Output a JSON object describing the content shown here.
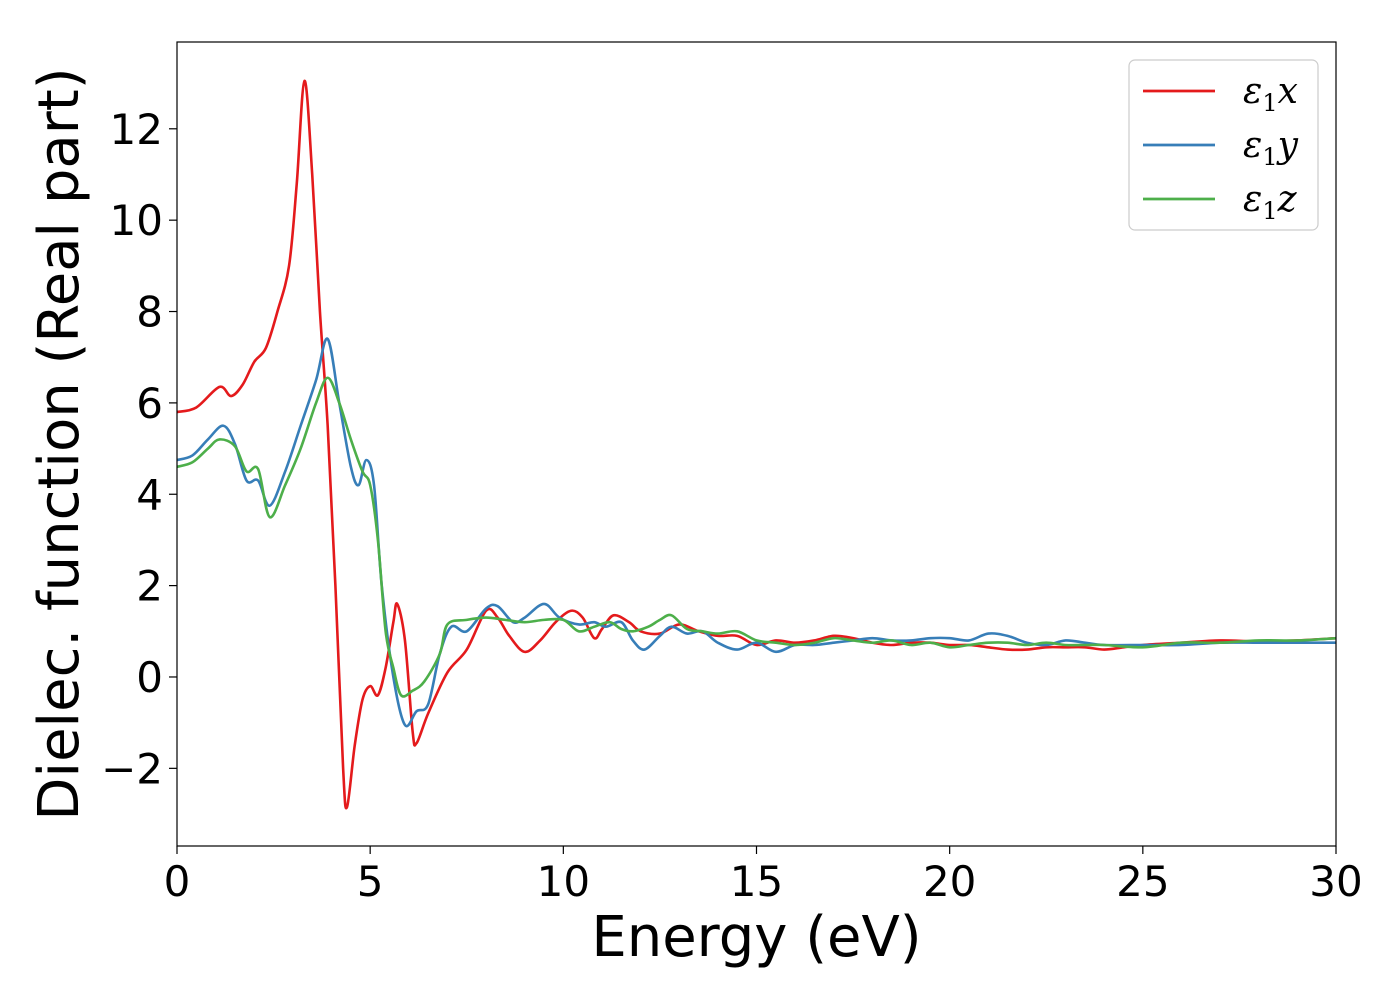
{
  "chart_data": {
    "type": "line",
    "title": "",
    "xlabel": "Energy (eV)",
    "ylabel": "Dielec. function (Real part)",
    "xlim": [
      0,
      30
    ],
    "ylim": [
      -3.7,
      13.9
    ],
    "xticks": [
      0,
      5,
      10,
      15,
      20,
      25,
      30
    ],
    "xtick_labels": [
      "0",
      "5",
      "10",
      "15",
      "20",
      "25",
      "30"
    ],
    "yticks": [
      -2,
      0,
      2,
      4,
      6,
      8,
      10,
      12
    ],
    "ytick_labels": [
      "−2",
      "0",
      "2",
      "4",
      "6",
      "8",
      "10",
      "12"
    ],
    "grid": false,
    "legend_position": "top-right",
    "series": [
      {
        "name": "ε₁x",
        "legend_main": "ε",
        "legend_sub": "1",
        "legend_tail": "x",
        "color": "#e41a1c",
        "points": [
          [
            0,
            5.8
          ],
          [
            0.5,
            5.9
          ],
          [
            1.1,
            6.35
          ],
          [
            1.4,
            6.15
          ],
          [
            1.7,
            6.4
          ],
          [
            2.0,
            6.9
          ],
          [
            2.3,
            7.2
          ],
          [
            2.6,
            8.0
          ],
          [
            2.9,
            9.0
          ],
          [
            3.1,
            10.8
          ],
          [
            3.3,
            13.05
          ],
          [
            3.5,
            11.0
          ],
          [
            3.7,
            8.0
          ],
          [
            3.9,
            5.5
          ],
          [
            4.1,
            2.0
          ],
          [
            4.3,
            -2.0
          ],
          [
            4.4,
            -2.85
          ],
          [
            4.6,
            -1.5
          ],
          [
            4.8,
            -0.5
          ],
          [
            5.0,
            -0.2
          ],
          [
            5.2,
            -0.4
          ],
          [
            5.4,
            0.2
          ],
          [
            5.6,
            1.2
          ],
          [
            5.7,
            1.6
          ],
          [
            5.9,
            0.8
          ],
          [
            6.1,
            -1.2
          ],
          [
            6.2,
            -1.45
          ],
          [
            6.5,
            -0.8
          ],
          [
            7.0,
            0.1
          ],
          [
            7.5,
            0.6
          ],
          [
            8.0,
            1.45
          ],
          [
            8.3,
            1.3
          ],
          [
            8.6,
            0.9
          ],
          [
            9.0,
            0.55
          ],
          [
            9.4,
            0.8
          ],
          [
            9.8,
            1.2
          ],
          [
            10.2,
            1.45
          ],
          [
            10.5,
            1.3
          ],
          [
            10.8,
            0.85
          ],
          [
            11.0,
            1.05
          ],
          [
            11.3,
            1.35
          ],
          [
            11.7,
            1.2
          ],
          [
            12.0,
            1.0
          ],
          [
            12.5,
            0.95
          ],
          [
            13.0,
            1.15
          ],
          [
            13.5,
            1.0
          ],
          [
            14.0,
            0.9
          ],
          [
            14.5,
            0.9
          ],
          [
            15.0,
            0.7
          ],
          [
            15.5,
            0.8
          ],
          [
            16.0,
            0.75
          ],
          [
            16.5,
            0.8
          ],
          [
            17.0,
            0.9
          ],
          [
            17.5,
            0.85
          ],
          [
            18.0,
            0.75
          ],
          [
            18.5,
            0.7
          ],
          [
            19.0,
            0.75
          ],
          [
            19.5,
            0.75
          ],
          [
            20.0,
            0.7
          ],
          [
            20.5,
            0.7
          ],
          [
            21.0,
            0.65
          ],
          [
            21.5,
            0.6
          ],
          [
            22.0,
            0.6
          ],
          [
            22.5,
            0.65
          ],
          [
            23.0,
            0.65
          ],
          [
            23.5,
            0.65
          ],
          [
            24.0,
            0.6
          ],
          [
            24.5,
            0.65
          ],
          [
            25.0,
            0.7
          ],
          [
            26.0,
            0.75
          ],
          [
            27.0,
            0.8
          ],
          [
            28.0,
            0.78
          ],
          [
            29.0,
            0.8
          ],
          [
            30.0,
            0.85
          ]
        ]
      },
      {
        "name": "ε₁y",
        "legend_main": "ε",
        "legend_sub": "1",
        "legend_tail": "y",
        "color": "#377eb8",
        "points": [
          [
            0,
            4.75
          ],
          [
            0.4,
            4.85
          ],
          [
            0.8,
            5.2
          ],
          [
            1.2,
            5.5
          ],
          [
            1.5,
            5.1
          ],
          [
            1.8,
            4.3
          ],
          [
            2.1,
            4.3
          ],
          [
            2.4,
            3.75
          ],
          [
            2.8,
            4.5
          ],
          [
            3.2,
            5.5
          ],
          [
            3.6,
            6.5
          ],
          [
            3.9,
            7.4
          ],
          [
            4.2,
            6.0
          ],
          [
            4.5,
            4.6
          ],
          [
            4.7,
            4.2
          ],
          [
            4.9,
            4.75
          ],
          [
            5.1,
            4.2
          ],
          [
            5.3,
            2.0
          ],
          [
            5.6,
            0.0
          ],
          [
            5.9,
            -1.05
          ],
          [
            6.2,
            -0.75
          ],
          [
            6.5,
            -0.6
          ],
          [
            6.8,
            0.5
          ],
          [
            7.1,
            1.1
          ],
          [
            7.5,
            1.0
          ],
          [
            8.0,
            1.5
          ],
          [
            8.3,
            1.55
          ],
          [
            8.7,
            1.2
          ],
          [
            9.0,
            1.3
          ],
          [
            9.5,
            1.6
          ],
          [
            9.9,
            1.3
          ],
          [
            10.4,
            1.15
          ],
          [
            10.8,
            1.2
          ],
          [
            11.1,
            1.1
          ],
          [
            11.5,
            1.2
          ],
          [
            11.8,
            0.8
          ],
          [
            12.1,
            0.6
          ],
          [
            12.5,
            0.9
          ],
          [
            12.8,
            1.1
          ],
          [
            13.2,
            0.95
          ],
          [
            13.6,
            1.0
          ],
          [
            14.0,
            0.75
          ],
          [
            14.5,
            0.6
          ],
          [
            15.0,
            0.75
          ],
          [
            15.5,
            0.55
          ],
          [
            16.0,
            0.7
          ],
          [
            16.5,
            0.7
          ],
          [
            17.0,
            0.75
          ],
          [
            17.5,
            0.8
          ],
          [
            18.0,
            0.85
          ],
          [
            18.5,
            0.8
          ],
          [
            19.0,
            0.8
          ],
          [
            19.5,
            0.85
          ],
          [
            20.0,
            0.85
          ],
          [
            20.5,
            0.8
          ],
          [
            21.0,
            0.95
          ],
          [
            21.5,
            0.9
          ],
          [
            22.0,
            0.75
          ],
          [
            22.5,
            0.7
          ],
          [
            23.0,
            0.8
          ],
          [
            23.5,
            0.75
          ],
          [
            24.0,
            0.7
          ],
          [
            25.0,
            0.7
          ],
          [
            26.0,
            0.7
          ],
          [
            27.0,
            0.75
          ],
          [
            28.0,
            0.75
          ],
          [
            29.0,
            0.75
          ],
          [
            30.0,
            0.75
          ]
        ]
      },
      {
        "name": "ε₁z",
        "legend_main": "ε",
        "legend_sub": "1",
        "legend_tail": "z",
        "color": "#4daf4a",
        "points": [
          [
            0,
            4.6
          ],
          [
            0.4,
            4.7
          ],
          [
            0.8,
            5.0
          ],
          [
            1.1,
            5.2
          ],
          [
            1.5,
            5.05
          ],
          [
            1.8,
            4.5
          ],
          [
            2.1,
            4.55
          ],
          [
            2.4,
            3.5
          ],
          [
            2.8,
            4.2
          ],
          [
            3.2,
            5.0
          ],
          [
            3.6,
            6.0
          ],
          [
            3.9,
            6.55
          ],
          [
            4.2,
            6.0
          ],
          [
            4.5,
            5.2
          ],
          [
            4.8,
            4.5
          ],
          [
            5.0,
            4.2
          ],
          [
            5.2,
            3.0
          ],
          [
            5.4,
            1.0
          ],
          [
            5.6,
            0.2
          ],
          [
            5.8,
            -0.4
          ],
          [
            6.1,
            -0.3
          ],
          [
            6.4,
            -0.1
          ],
          [
            6.8,
            0.5
          ],
          [
            7.0,
            1.15
          ],
          [
            7.5,
            1.25
          ],
          [
            8.0,
            1.3
          ],
          [
            8.5,
            1.25
          ],
          [
            9.0,
            1.2
          ],
          [
            9.5,
            1.25
          ],
          [
            10.0,
            1.25
          ],
          [
            10.4,
            1.0
          ],
          [
            10.8,
            1.1
          ],
          [
            11.2,
            1.2
          ],
          [
            11.5,
            1.05
          ],
          [
            11.8,
            1.0
          ],
          [
            12.2,
            1.1
          ],
          [
            12.5,
            1.25
          ],
          [
            12.8,
            1.35
          ],
          [
            13.2,
            1.05
          ],
          [
            13.6,
            1.0
          ],
          [
            14.0,
            0.95
          ],
          [
            14.5,
            1.0
          ],
          [
            15.0,
            0.8
          ],
          [
            15.5,
            0.75
          ],
          [
            16.0,
            0.7
          ],
          [
            16.5,
            0.75
          ],
          [
            17.0,
            0.85
          ],
          [
            17.5,
            0.8
          ],
          [
            18.0,
            0.75
          ],
          [
            18.5,
            0.8
          ],
          [
            19.0,
            0.7
          ],
          [
            19.5,
            0.75
          ],
          [
            20.0,
            0.65
          ],
          [
            20.5,
            0.7
          ],
          [
            21.0,
            0.75
          ],
          [
            21.5,
            0.75
          ],
          [
            22.0,
            0.7
          ],
          [
            22.5,
            0.75
          ],
          [
            23.0,
            0.7
          ],
          [
            23.5,
            0.7
          ],
          [
            24.0,
            0.7
          ],
          [
            25.0,
            0.65
          ],
          [
            26.0,
            0.75
          ],
          [
            27.0,
            0.75
          ],
          [
            28.0,
            0.8
          ],
          [
            29.0,
            0.8
          ],
          [
            30.0,
            0.85
          ]
        ]
      }
    ]
  }
}
